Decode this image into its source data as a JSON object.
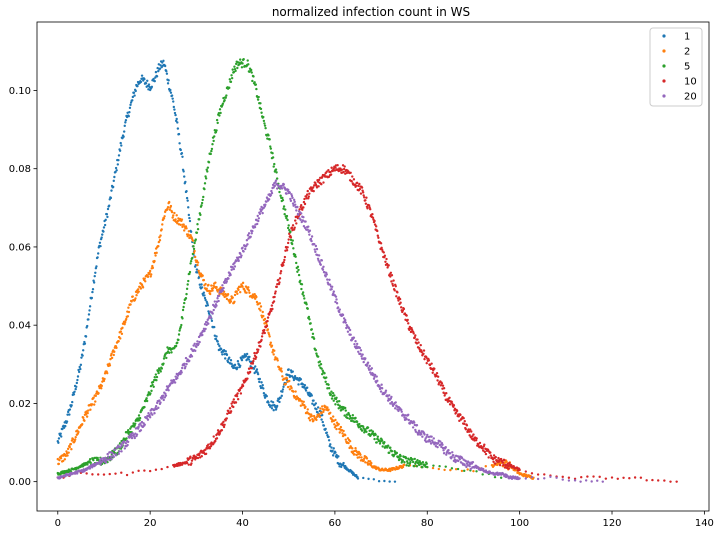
{
  "chart_data": {
    "type": "scatter",
    "title": "normalized infection count in WS",
    "xlabel": "",
    "ylabel": "",
    "xlim": [
      -4.5,
      141
    ],
    "ylim": [
      -0.0075,
      0.1175
    ],
    "xticks": [
      0,
      20,
      40,
      60,
      80,
      100,
      120,
      140
    ],
    "yticks": [
      0.0,
      0.02,
      0.04,
      0.06,
      0.08,
      0.1
    ],
    "ytick_labels": [
      "0.00",
      "0.02",
      "0.04",
      "0.06",
      "0.08",
      "0.10"
    ],
    "legend_position": "top-right",
    "grid": false,
    "series": [
      {
        "name": "1",
        "color": "#1f77b4",
        "points": [
          [
            0,
            0.01
          ],
          [
            1,
            0.013
          ],
          [
            2,
            0.016
          ],
          [
            3,
            0.02
          ],
          [
            4,
            0.025
          ],
          [
            5,
            0.03
          ],
          [
            6,
            0.037
          ],
          [
            7,
            0.045
          ],
          [
            8,
            0.053
          ],
          [
            9,
            0.06
          ],
          [
            10,
            0.065
          ],
          [
            11,
            0.07
          ],
          [
            12,
            0.076
          ],
          [
            13,
            0.082
          ],
          [
            14,
            0.088
          ],
          [
            15,
            0.093
          ],
          [
            16,
            0.097
          ],
          [
            17,
            0.101
          ],
          [
            18,
            0.103
          ],
          [
            19,
            0.102
          ],
          [
            20,
            0.101
          ],
          [
            21,
            0.103
          ],
          [
            22,
            0.106
          ],
          [
            23,
            0.107
          ],
          [
            24,
            0.102
          ],
          [
            25,
            0.097
          ],
          [
            26,
            0.09
          ],
          [
            27,
            0.082
          ],
          [
            28,
            0.072
          ],
          [
            29,
            0.062
          ],
          [
            30,
            0.054
          ],
          [
            31,
            0.05
          ],
          [
            32,
            0.046
          ],
          [
            33,
            0.043
          ],
          [
            34,
            0.038
          ],
          [
            35,
            0.034
          ],
          [
            36,
            0.033
          ],
          [
            37,
            0.031
          ],
          [
            38,
            0.029
          ],
          [
            39,
            0.03
          ],
          [
            40,
            0.031
          ],
          [
            41,
            0.032
          ],
          [
            42,
            0.03
          ],
          [
            43,
            0.028
          ],
          [
            44,
            0.025
          ],
          [
            45,
            0.022
          ],
          [
            46,
            0.02
          ],
          [
            47,
            0.019
          ],
          [
            48,
            0.021
          ],
          [
            49,
            0.025
          ],
          [
            50,
            0.028
          ],
          [
            51,
            0.027
          ],
          [
            52,
            0.026
          ],
          [
            53,
            0.025
          ],
          [
            54,
            0.023
          ],
          [
            55,
            0.021
          ],
          [
            56,
            0.019
          ],
          [
            57,
            0.017
          ],
          [
            58,
            0.013
          ],
          [
            59,
            0.009
          ],
          [
            60,
            0.007
          ],
          [
            61,
            0.005
          ],
          [
            62,
            0.004
          ],
          [
            63,
            0.003
          ],
          [
            65,
            0.001
          ],
          [
            73,
            0.0
          ]
        ]
      },
      {
        "name": "2",
        "color": "#ff7f0e",
        "points": [
          [
            0,
            0.005
          ],
          [
            2,
            0.007
          ],
          [
            4,
            0.012
          ],
          [
            6,
            0.017
          ],
          [
            8,
            0.021
          ],
          [
            10,
            0.026
          ],
          [
            12,
            0.033
          ],
          [
            14,
            0.039
          ],
          [
            16,
            0.046
          ],
          [
            18,
            0.05
          ],
          [
            20,
            0.053
          ],
          [
            22,
            0.062
          ],
          [
            23,
            0.068
          ],
          [
            24,
            0.071
          ],
          [
            25,
            0.068
          ],
          [
            26,
            0.067
          ],
          [
            27,
            0.066
          ],
          [
            28,
            0.064
          ],
          [
            29,
            0.062
          ],
          [
            30,
            0.057
          ],
          [
            31,
            0.053
          ],
          [
            32,
            0.05
          ],
          [
            33,
            0.049
          ],
          [
            34,
            0.05
          ],
          [
            35,
            0.049
          ],
          [
            36,
            0.048
          ],
          [
            37,
            0.047
          ],
          [
            38,
            0.046
          ],
          [
            39,
            0.049
          ],
          [
            40,
            0.05
          ],
          [
            41,
            0.049
          ],
          [
            42,
            0.048
          ],
          [
            43,
            0.047
          ],
          [
            44,
            0.044
          ],
          [
            45,
            0.04
          ],
          [
            46,
            0.036
          ],
          [
            47,
            0.032
          ],
          [
            48,
            0.029
          ],
          [
            49,
            0.026
          ],
          [
            50,
            0.025
          ],
          [
            51,
            0.023
          ],
          [
            52,
            0.021
          ],
          [
            53,
            0.02
          ],
          [
            54,
            0.018
          ],
          [
            55,
            0.016
          ],
          [
            56,
            0.016
          ],
          [
            57,
            0.018
          ],
          [
            58,
            0.019
          ],
          [
            59,
            0.017
          ],
          [
            60,
            0.015
          ],
          [
            62,
            0.012
          ],
          [
            64,
            0.008
          ],
          [
            66,
            0.006
          ],
          [
            68,
            0.004
          ],
          [
            70,
            0.003
          ],
          [
            72,
            0.003
          ],
          [
            75,
            0.004
          ],
          [
            80,
            0.004
          ],
          [
            85,
            0.003
          ],
          [
            90,
            0.003
          ],
          [
            94,
            0.004
          ],
          [
            96,
            0.005
          ],
          [
            98,
            0.004
          ],
          [
            100,
            0.002
          ],
          [
            103,
            0.001
          ]
        ]
      },
      {
        "name": "5",
        "color": "#2ca02c",
        "points": [
          [
            0,
            0.002
          ],
          [
            3,
            0.003
          ],
          [
            5,
            0.004
          ],
          [
            7,
            0.005
          ],
          [
            9,
            0.005
          ],
          [
            11,
            0.006
          ],
          [
            13,
            0.008
          ],
          [
            15,
            0.012
          ],
          [
            17,
            0.015
          ],
          [
            19,
            0.02
          ],
          [
            21,
            0.026
          ],
          [
            23,
            0.031
          ],
          [
            24,
            0.034
          ],
          [
            25,
            0.033
          ],
          [
            26,
            0.036
          ],
          [
            27,
            0.042
          ],
          [
            28,
            0.05
          ],
          [
            29,
            0.057
          ],
          [
            30,
            0.063
          ],
          [
            31,
            0.07
          ],
          [
            32,
            0.077
          ],
          [
            33,
            0.084
          ],
          [
            34,
            0.089
          ],
          [
            35,
            0.094
          ],
          [
            36,
            0.098
          ],
          [
            37,
            0.101
          ],
          [
            38,
            0.105
          ],
          [
            39,
            0.107
          ],
          [
            40,
            0.107
          ],
          [
            41,
            0.107
          ],
          [
            42,
            0.104
          ],
          [
            43,
            0.1
          ],
          [
            44,
            0.095
          ],
          [
            45,
            0.09
          ],
          [
            46,
            0.086
          ],
          [
            47,
            0.08
          ],
          [
            48,
            0.075
          ],
          [
            49,
            0.07
          ],
          [
            50,
            0.065
          ],
          [
            51,
            0.06
          ],
          [
            52,
            0.054
          ],
          [
            53,
            0.049
          ],
          [
            54,
            0.044
          ],
          [
            55,
            0.038
          ],
          [
            56,
            0.033
          ],
          [
            57,
            0.029
          ],
          [
            58,
            0.026
          ],
          [
            59,
            0.023
          ],
          [
            60,
            0.021
          ],
          [
            62,
            0.018
          ],
          [
            64,
            0.016
          ],
          [
            66,
            0.014
          ],
          [
            68,
            0.012
          ],
          [
            70,
            0.01
          ],
          [
            72,
            0.008
          ],
          [
            74,
            0.006
          ],
          [
            76,
            0.005
          ],
          [
            78,
            0.005
          ],
          [
            80,
            0.004
          ],
          [
            84,
            0.004
          ],
          [
            88,
            0.003
          ],
          [
            92,
            0.002
          ],
          [
            96,
            0.001
          ]
        ]
      },
      {
        "name": "10",
        "color": "#d62728",
        "points": [
          [
            0,
            0.001
          ],
          [
            5,
            0.002
          ],
          [
            10,
            0.002
          ],
          [
            15,
            0.002
          ],
          [
            20,
            0.003
          ],
          [
            25,
            0.004
          ],
          [
            28,
            0.005
          ],
          [
            30,
            0.006
          ],
          [
            32,
            0.008
          ],
          [
            34,
            0.011
          ],
          [
            36,
            0.015
          ],
          [
            38,
            0.02
          ],
          [
            40,
            0.024
          ],
          [
            42,
            0.03
          ],
          [
            44,
            0.036
          ],
          [
            46,
            0.043
          ],
          [
            48,
            0.052
          ],
          [
            50,
            0.062
          ],
          [
            52,
            0.068
          ],
          [
            54,
            0.073
          ],
          [
            56,
            0.076
          ],
          [
            58,
            0.078
          ],
          [
            60,
            0.08
          ],
          [
            62,
            0.08
          ],
          [
            64,
            0.077
          ],
          [
            66,
            0.074
          ],
          [
            68,
            0.068
          ],
          [
            70,
            0.06
          ],
          [
            72,
            0.053
          ],
          [
            74,
            0.046
          ],
          [
            76,
            0.04
          ],
          [
            78,
            0.035
          ],
          [
            80,
            0.031
          ],
          [
            82,
            0.027
          ],
          [
            84,
            0.022
          ],
          [
            86,
            0.018
          ],
          [
            88,
            0.015
          ],
          [
            90,
            0.011
          ],
          [
            92,
            0.009
          ],
          [
            94,
            0.006
          ],
          [
            96,
            0.005
          ],
          [
            98,
            0.004
          ],
          [
            100,
            0.003
          ],
          [
            104,
            0.002
          ],
          [
            108,
            0.001
          ],
          [
            112,
            0.001
          ],
          [
            116,
            0.001
          ],
          [
            120,
            0.001
          ],
          [
            125,
            0.001
          ],
          [
            130,
            0.0
          ],
          [
            134,
            0.0
          ]
        ]
      },
      {
        "name": "20",
        "color": "#9467bd",
        "points": [
          [
            0,
            0.001
          ],
          [
            3,
            0.002
          ],
          [
            6,
            0.003
          ],
          [
            9,
            0.005
          ],
          [
            12,
            0.007
          ],
          [
            15,
            0.01
          ],
          [
            18,
            0.014
          ],
          [
            20,
            0.017
          ],
          [
            22,
            0.02
          ],
          [
            24,
            0.024
          ],
          [
            26,
            0.027
          ],
          [
            28,
            0.031
          ],
          [
            30,
            0.035
          ],
          [
            32,
            0.04
          ],
          [
            34,
            0.045
          ],
          [
            36,
            0.05
          ],
          [
            38,
            0.055
          ],
          [
            40,
            0.059
          ],
          [
            42,
            0.064
          ],
          [
            44,
            0.069
          ],
          [
            46,
            0.073
          ],
          [
            47,
            0.076
          ],
          [
            48,
            0.076
          ],
          [
            50,
            0.074
          ],
          [
            52,
            0.069
          ],
          [
            54,
            0.065
          ],
          [
            56,
            0.059
          ],
          [
            58,
            0.053
          ],
          [
            60,
            0.047
          ],
          [
            62,
            0.041
          ],
          [
            64,
            0.036
          ],
          [
            66,
            0.032
          ],
          [
            68,
            0.028
          ],
          [
            70,
            0.024
          ],
          [
            72,
            0.021
          ],
          [
            74,
            0.018
          ],
          [
            76,
            0.016
          ],
          [
            78,
            0.013
          ],
          [
            80,
            0.011
          ],
          [
            82,
            0.01
          ],
          [
            84,
            0.008
          ],
          [
            86,
            0.006
          ],
          [
            88,
            0.005
          ],
          [
            90,
            0.004
          ],
          [
            92,
            0.003
          ],
          [
            94,
            0.002
          ],
          [
            96,
            0.002
          ],
          [
            98,
            0.001
          ],
          [
            100,
            0.001
          ],
          [
            104,
            0.001
          ],
          [
            108,
            0.001
          ],
          [
            112,
            0.0
          ],
          [
            118,
            0.0
          ]
        ]
      }
    ]
  }
}
